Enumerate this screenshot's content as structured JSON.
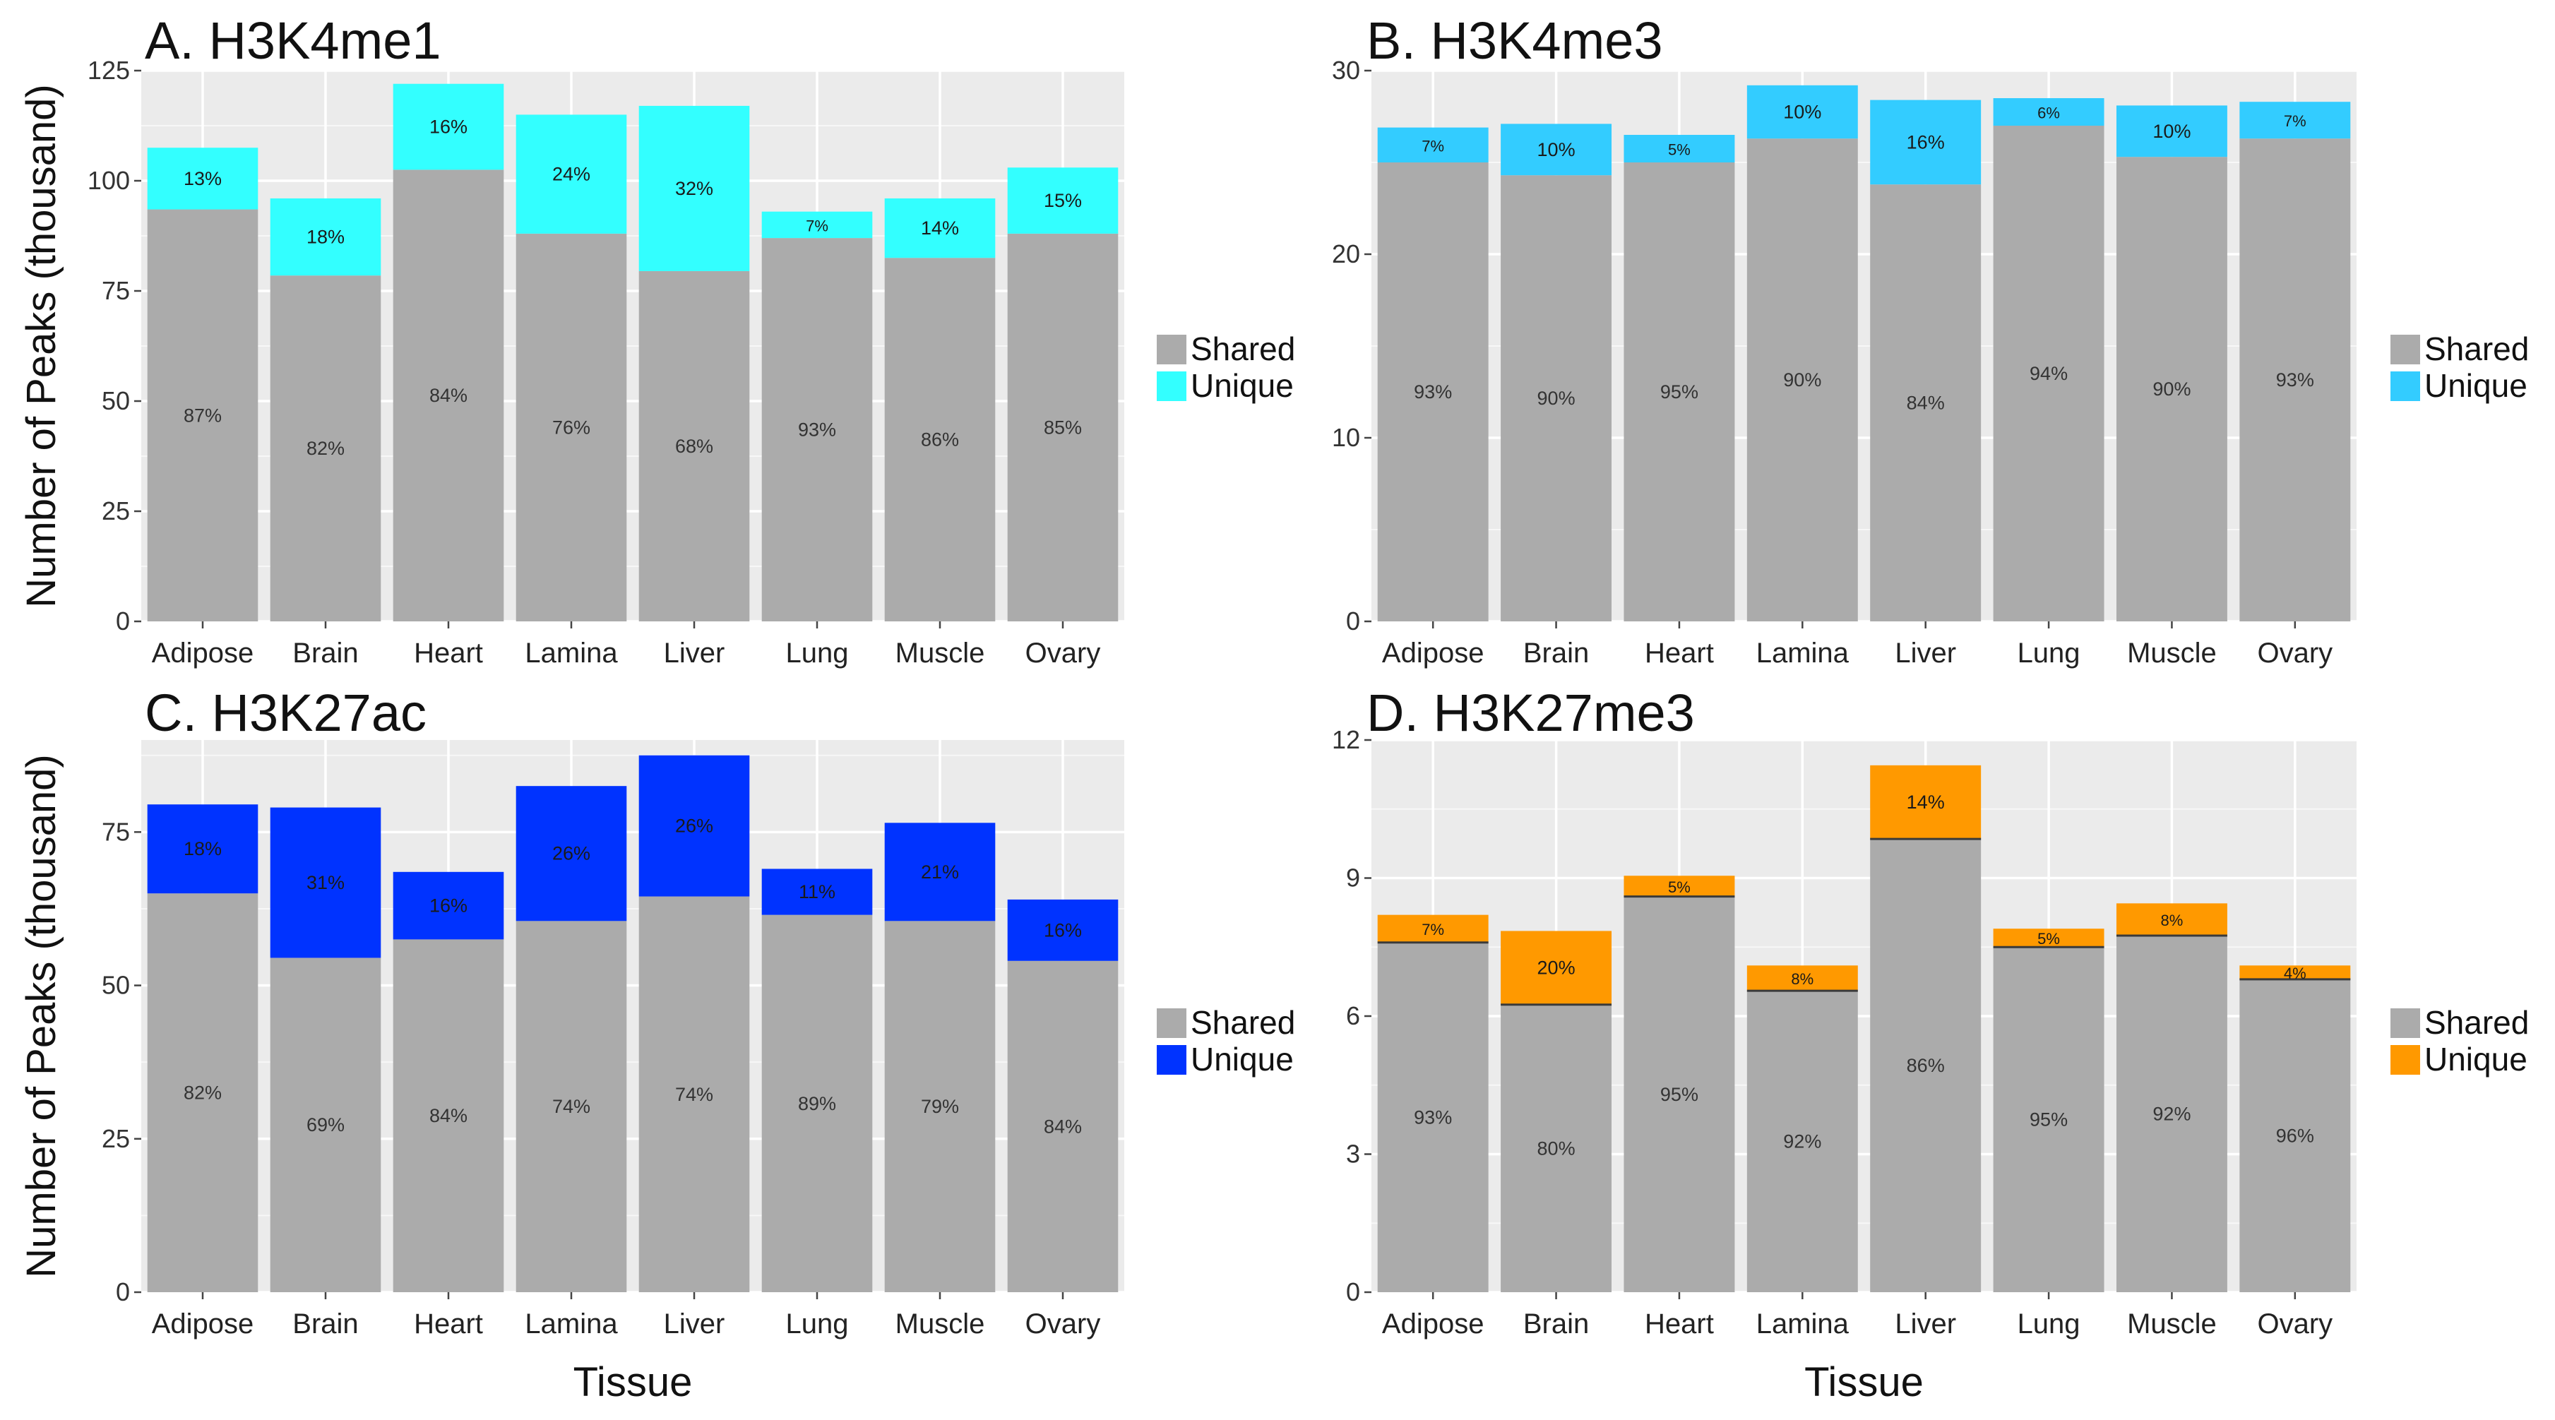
{
  "y_axis_label": "Number of Peaks (thousand)",
  "x_axis_label": "Tissue",
  "chart_data": [
    {
      "type": "bar",
      "stacked": true,
      "title": "A. H3K4me1",
      "xlabel": "",
      "ylabel": "Number of Peaks (thousand)",
      "ylim": [
        0,
        125
      ],
      "yticks": [
        0,
        25,
        50,
        75,
        100,
        125
      ],
      "grid": true,
      "legend_position": "right",
      "categories": [
        "Adipose",
        "Brain",
        "Heart",
        "Lamina",
        "Liver",
        "Lung",
        "Muscle",
        "Ovary"
      ],
      "series": [
        {
          "name": "Shared",
          "color": "#ababab",
          "values": [
            93.5,
            78.5,
            102.5,
            88,
            79.5,
            87,
            82.5,
            88
          ],
          "labels": [
            "87%",
            "82%",
            "84%",
            "76%",
            "68%",
            "93%",
            "86%",
            "85%"
          ]
        },
        {
          "name": "Unique",
          "color": "#33ffff",
          "values": [
            14,
            17.5,
            19.5,
            27,
            37.5,
            6,
            13.5,
            15
          ],
          "labels": [
            "13%",
            "18%",
            "16%",
            "24%",
            "32%",
            "7%",
            "14%",
            "15%"
          ]
        }
      ]
    },
    {
      "type": "bar",
      "stacked": true,
      "title": "B. H3K4me3",
      "xlabel": "",
      "ylabel": "",
      "ylim": [
        0,
        30
      ],
      "yticks": [
        0,
        10,
        20,
        30
      ],
      "grid": true,
      "legend_position": "right",
      "categories": [
        "Adipose",
        "Brain",
        "Heart",
        "Lamina",
        "Liver",
        "Lung",
        "Muscle",
        "Ovary"
      ],
      "series": [
        {
          "name": "Shared",
          "color": "#ababab",
          "values": [
            25,
            24.3,
            25,
            26.3,
            23.8,
            27,
            25.3,
            26.3
          ],
          "labels": [
            "93%",
            "90%",
            "95%",
            "90%",
            "84%",
            "94%",
            "90%",
            "93%"
          ]
        },
        {
          "name": "Unique",
          "color": "#33ccff",
          "values": [
            1.9,
            2.8,
            1.5,
            2.9,
            4.6,
            1.5,
            2.8,
            2.0
          ],
          "labels": [
            "7%",
            "10%",
            "5%",
            "10%",
            "16%",
            "6%",
            "10%",
            "7%"
          ]
        }
      ]
    },
    {
      "type": "bar",
      "stacked": true,
      "title": "C. H3K27ac",
      "xlabel": "Tissue",
      "ylabel": "Number of Peaks (thousand)",
      "ylim": [
        0,
        90
      ],
      "yticks": [
        0,
        25,
        50,
        75
      ],
      "grid": true,
      "legend_position": "right",
      "categories": [
        "Adipose",
        "Brain",
        "Heart",
        "Lamina",
        "Liver",
        "Lung",
        "Muscle",
        "Ovary"
      ],
      "series": [
        {
          "name": "Shared",
          "color": "#ababab",
          "values": [
            65,
            54.5,
            57.5,
            60.5,
            64.5,
            61.5,
            60.5,
            54
          ],
          "labels": [
            "82%",
            "69%",
            "84%",
            "74%",
            "74%",
            "89%",
            "79%",
            "84%"
          ]
        },
        {
          "name": "Unique",
          "color": "#0033ff",
          "values": [
            14.5,
            24.5,
            11,
            22,
            23,
            7.5,
            16,
            10
          ],
          "labels": [
            "18%",
            "31%",
            "16%",
            "26%",
            "26%",
            "11%",
            "21%",
            "16%"
          ]
        }
      ]
    },
    {
      "type": "bar",
      "stacked": true,
      "title": "D. H3K27me3",
      "xlabel": "Tissue",
      "ylabel": "",
      "ylim": [
        0,
        12
      ],
      "yticks": [
        0,
        3,
        6,
        9,
        12
      ],
      "grid": true,
      "legend_position": "right",
      "categories": [
        "Adipose",
        "Brain",
        "Heart",
        "Lamina",
        "Liver",
        "Lung",
        "Muscle",
        "Ovary"
      ],
      "series": [
        {
          "name": "Shared",
          "color": "#ababab",
          "values": [
            7.6,
            6.25,
            8.6,
            6.55,
            9.85,
            7.5,
            7.75,
            6.8
          ],
          "labels": [
            "93%",
            "80%",
            "95%",
            "92%",
            "86%",
            "95%",
            "92%",
            "96%"
          ]
        },
        {
          "name": "Unique",
          "color": "#ff9900",
          "values": [
            0.6,
            1.6,
            0.45,
            0.55,
            1.6,
            0.4,
            0.7,
            0.3
          ],
          "labels": [
            "7%",
            "20%",
            "5%",
            "8%",
            "14%",
            "5%",
            "8%",
            "4%"
          ]
        }
      ]
    }
  ]
}
